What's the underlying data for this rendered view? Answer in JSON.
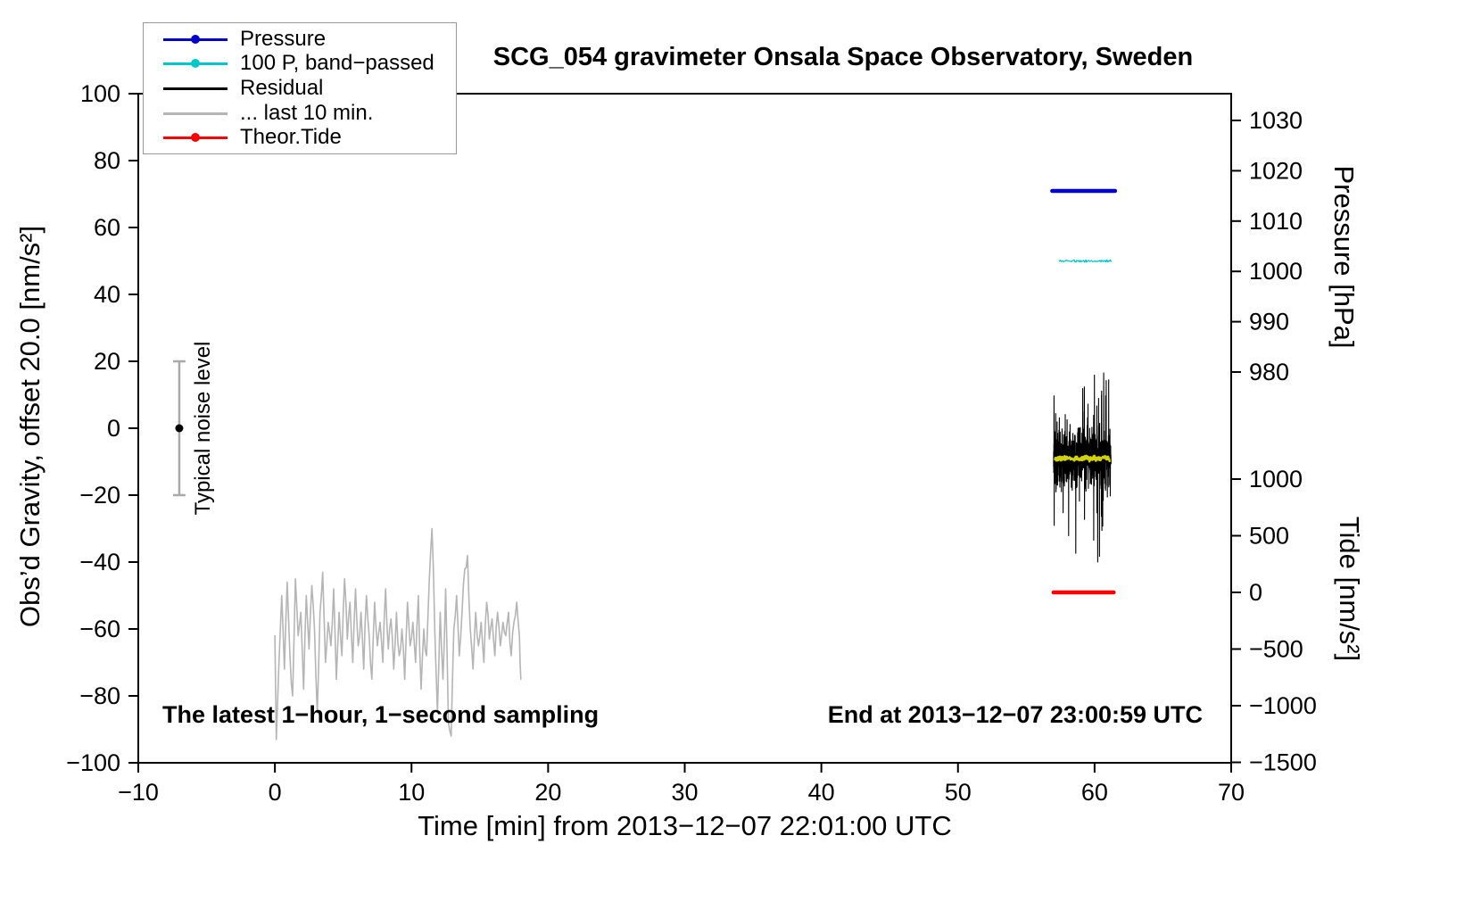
{
  "chart_data": {
    "type": "line",
    "title": "SCG_054 gravimeter Onsala Space Observatory, Sweden",
    "xlabel": "Time [min] from 2013−12−07 22:01:00 UTC",
    "ylabel_left": "Obs’d Gravity, offset 20.0 [nm/s²]",
    "ylabel_pressure": "Pressure [hPa]",
    "ylabel_tide": "Tide [nm/s²]",
    "xlim": [
      -10,
      70
    ],
    "ylim_left": [
      -100,
      100
    ],
    "x_ticks": [
      -10,
      0,
      10,
      20,
      30,
      40,
      50,
      60,
      70
    ],
    "y_ticks_left": [
      100,
      80,
      60,
      40,
      20,
      0,
      -20,
      -40,
      -60,
      -80,
      -100
    ],
    "pressure_ticks": [
      1030,
      1020,
      1010,
      1000,
      990,
      980
    ],
    "tide_ticks": [
      1000,
      500,
      0,
      -500,
      -1000,
      -1500
    ],
    "grid": false,
    "legend_position": "top-left",
    "annotations": {
      "sampling_note": "The latest 1−hour, 1−second sampling",
      "end_note": "End at 2013−12−07 23:00:59 UTC"
    },
    "noise_bar": {
      "x": -7,
      "y_center": 0,
      "half_range": 20,
      "label": "Typical noise level",
      "bar_color": "#aaaaaa",
      "dot_color": "#000000"
    },
    "legend": {
      "items": [
        {
          "label": "Pressure",
          "color": "#0000cc",
          "marker": true
        },
        {
          "label": "100 P, band−passed",
          "color": "#00c8c8",
          "marker": true
        },
        {
          "label": "Residual",
          "color": "#000000",
          "marker": false
        },
        {
          "label": "... last 10 min.",
          "color": "#b5b5b5",
          "marker": false
        },
        {
          "label": "Theor.Tide",
          "color": "#ff0000",
          "marker": true
        }
      ]
    },
    "series": [
      {
        "name": "last-10-min-gravity",
        "legend_label": "... last 10 min.",
        "color": "#b5b5b5",
        "axis": "left",
        "style": "anchors",
        "width": 1.6,
        "jitter": 2.5,
        "points_per_seg": 2,
        "seed": 11,
        "anchors": [
          [
            0,
            -62
          ],
          [
            0.1,
            -93
          ],
          [
            0.3,
            -70
          ],
          [
            0.5,
            -50
          ],
          [
            0.7,
            -72
          ],
          [
            0.9,
            -46
          ],
          [
            1.1,
            -68
          ],
          [
            1.3,
            -80
          ],
          [
            1.5,
            -45
          ],
          [
            1.7,
            -62
          ],
          [
            1.9,
            -55
          ],
          [
            2.1,
            -78
          ],
          [
            2.3,
            -50
          ],
          [
            2.5,
            -66
          ],
          [
            2.7,
            -47
          ],
          [
            2.9,
            -60
          ],
          [
            3.1,
            -85
          ],
          [
            3.3,
            -55
          ],
          [
            3.5,
            -43
          ],
          [
            3.7,
            -70
          ],
          [
            3.9,
            -58
          ],
          [
            4.1,
            -65
          ],
          [
            4.3,
            -48
          ],
          [
            4.5,
            -75
          ],
          [
            4.7,
            -55
          ],
          [
            4.9,
            -68
          ],
          [
            5.1,
            -45
          ],
          [
            5.3,
            -63
          ],
          [
            5.5,
            -52
          ],
          [
            5.7,
            -70
          ],
          [
            5.9,
            -48
          ],
          [
            6.1,
            -65
          ],
          [
            6.3,
            -55
          ],
          [
            6.5,
            -72
          ],
          [
            6.7,
            -50
          ],
          [
            6.9,
            -62
          ],
          [
            7.1,
            -75
          ],
          [
            7.3,
            -52
          ],
          [
            7.5,
            -65
          ],
          [
            7.7,
            -58
          ],
          [
            7.9,
            -70
          ],
          [
            8.1,
            -48
          ],
          [
            8.3,
            -66
          ],
          [
            8.5,
            -57
          ],
          [
            8.7,
            -72
          ],
          [
            8.9,
            -55
          ],
          [
            9.1,
            -68
          ],
          [
            9.3,
            -60
          ],
          [
            9.5,
            -75
          ],
          [
            9.7,
            -52
          ],
          [
            9.9,
            -65
          ],
          [
            10.1,
            -58
          ],
          [
            10.3,
            -70
          ],
          [
            10.5,
            -50
          ],
          [
            10.7,
            -78
          ],
          [
            10.9,
            -60
          ],
          [
            11.1,
            -68
          ],
          [
            11.3,
            -45
          ],
          [
            11.5,
            -30
          ],
          [
            11.7,
            -60
          ],
          [
            11.9,
            -85
          ],
          [
            12.1,
            -55
          ],
          [
            12.3,
            -75
          ],
          [
            12.5,
            -48
          ],
          [
            12.7,
            -88
          ],
          [
            12.9,
            -92
          ],
          [
            13.1,
            -60
          ],
          [
            13.3,
            -50
          ],
          [
            13.5,
            -68
          ],
          [
            13.7,
            -55
          ],
          [
            13.9,
            -42
          ],
          [
            14.1,
            -38
          ],
          [
            14.3,
            -60
          ],
          [
            14.5,
            -72
          ],
          [
            14.7,
            -55
          ],
          [
            14.9,
            -65
          ],
          [
            15.1,
            -58
          ],
          [
            15.3,
            -70
          ],
          [
            15.5,
            -52
          ],
          [
            15.7,
            -63
          ],
          [
            15.9,
            -57
          ],
          [
            16.1,
            -68
          ],
          [
            16.3,
            -55
          ],
          [
            16.5,
            -65
          ],
          [
            16.7,
            -58
          ],
          [
            16.9,
            -62
          ],
          [
            17.1,
            -55
          ],
          [
            17.3,
            -68
          ],
          [
            17.5,
            -58
          ],
          [
            17.7,
            -52
          ],
          [
            17.9,
            -62
          ],
          [
            18,
            -75
          ]
        ]
      },
      {
        "name": "residual",
        "legend_label": "Residual",
        "color": "#000000",
        "axis": "left",
        "style": "noise",
        "x_start": 57,
        "x_end": 61.2,
        "mean": -9,
        "amplitude": 13,
        "spike_amplitude": 26,
        "points": 650,
        "width": 1.1,
        "clamp": [
          -40,
          22
        ],
        "seed": 3
      },
      {
        "name": "residual-smoothed",
        "legend_label": "",
        "color": "#d2d200",
        "axis": "left",
        "style": "noise",
        "x_start": 57.1,
        "x_end": 61.1,
        "mean": -9,
        "amplitude": 1.2,
        "points": 120,
        "width": 2.5,
        "seed": 8
      },
      {
        "name": "pressure-band-passed",
        "legend_label": "100 P, band−passed",
        "color": "#00c8c8",
        "axis": "left",
        "style": "noise",
        "x_start": 57.4,
        "x_end": 61.2,
        "mean": 50,
        "amplitude": 0.6,
        "points": 90,
        "width": 1.2,
        "seed": 5
      },
      {
        "name": "pressure",
        "legend_label": "Pressure",
        "color": "#0000cc",
        "axis": "pressure",
        "style": "flat",
        "x_start": 56.9,
        "x_end": 61.5,
        "value": 1016,
        "width": 4.5
      },
      {
        "name": "theoretical-tide",
        "legend_label": "Theor.Tide",
        "color": "#ff0000",
        "axis": "tide",
        "style": "flat",
        "x_start": 57.0,
        "x_end": 61.4,
        "value": 0,
        "width": 4.5
      }
    ]
  }
}
